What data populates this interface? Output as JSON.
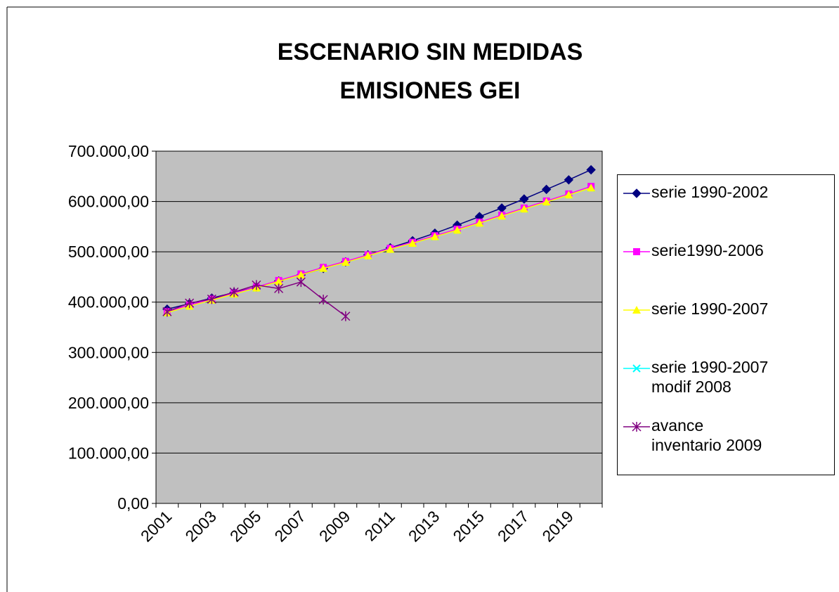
{
  "chart_data": {
    "type": "line",
    "title": [
      "ESCENARIO SIN MEDIDAS",
      "EMISIONES GEI"
    ],
    "categories": [
      "2001",
      null,
      "2003",
      null,
      "2005",
      null,
      "2007",
      null,
      "2009",
      null,
      "2011",
      null,
      "2013",
      null,
      "2015",
      null,
      "2017",
      null,
      "2019",
      null
    ],
    "series": [
      {
        "name": "serie 1990-2002",
        "color": "#000080",
        "marker": "diamond",
        "values": [
          386000,
          397000,
          408000,
          419000,
          430000,
          442000,
          454000,
          467000,
          480000,
          494000,
          508000,
          522000,
          537000,
          553000,
          570000,
          587000,
          605000,
          624000,
          643000,
          663000
        ]
      },
      {
        "name": "serie1990-2006",
        "color": "#ff00ff",
        "marker": "square",
        "values": [
          381000,
          394000,
          406000,
          418000,
          430000,
          443000,
          456000,
          469000,
          481000,
          494000,
          507000,
          519000,
          532000,
          545000,
          559000,
          573000,
          587000,
          601000,
          615000,
          630000
        ]
      },
      {
        "name": "serie 1990-2007",
        "color": "#ffff00",
        "marker": "triangle",
        "values": [
          379000,
          392000,
          404000,
          416000,
          428000,
          441000,
          454000,
          467000,
          479000,
          492000,
          505000,
          517000,
          530000,
          543000,
          557000,
          571000,
          585000,
          599000,
          613000,
          627000
        ]
      },
      {
        "name": "serie 1990-2007\nmodif 2008",
        "color": "#00ffff",
        "marker": "x",
        "values": [
          379000,
          392000,
          404000,
          416000,
          428000,
          441000,
          454000,
          467000,
          479000,
          492000,
          505000,
          517000,
          530000,
          543000,
          557000,
          571000,
          585000,
          599000,
          613000,
          627000
        ]
      },
      {
        "name": "avance\n inventario 2009",
        "color": "#800080",
        "marker": "star",
        "values": [
          381000,
          398000,
          406000,
          420000,
          434000,
          427000,
          440000,
          405000,
          372000,
          null,
          null,
          null,
          null,
          null,
          null,
          null,
          null,
          null,
          null,
          null
        ]
      }
    ],
    "ylim": [
      0,
      700000
    ],
    "yticks": [
      {
        "value": 0,
        "label": "0,00"
      },
      {
        "value": 100000,
        "label": "100.000,00"
      },
      {
        "value": 200000,
        "label": "200.000,00"
      },
      {
        "value": 300000,
        "label": "300.000,00"
      },
      {
        "value": 400000,
        "label": "400.000,00"
      },
      {
        "value": 500000,
        "label": "500.000,00"
      },
      {
        "value": 600000,
        "label": "600.000,00"
      },
      {
        "value": 700000,
        "label": "700.000,00"
      }
    ],
    "grid": true,
    "plot_background": "#c0c0c0",
    "legend": "right"
  }
}
